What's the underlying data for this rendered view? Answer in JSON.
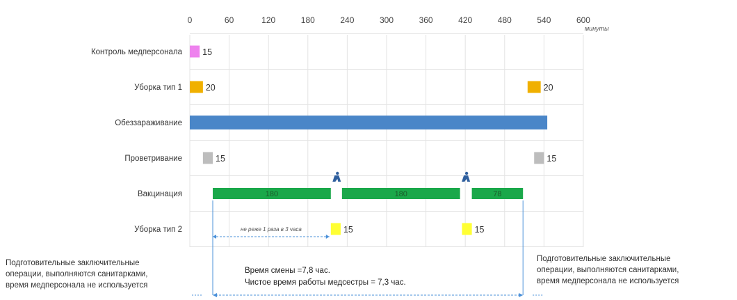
{
  "chart_data": {
    "type": "bar",
    "orientation": "horizontal",
    "x_unit": "минуты",
    "xlim": [
      0,
      600
    ],
    "x_ticks": [
      "0",
      "60",
      "120",
      "180",
      "240",
      "300",
      "360",
      "420",
      "480",
      "540",
      "600"
    ],
    "grid": true,
    "categories": [
      "Контроль медперсонала",
      "Уборка тип 1",
      "Обеззараживание",
      "Проветривание",
      "Вакцинация",
      "Уборка тип 2"
    ],
    "bars": [
      {
        "row": 0,
        "start": 0,
        "duration": 15,
        "label": "15",
        "label_pos": "right",
        "color": "#ee82ee"
      },
      {
        "row": 1,
        "start": 0,
        "duration": 20,
        "label": "20",
        "label_pos": "right",
        "color": "#f0b000"
      },
      {
        "row": 1,
        "start": 515,
        "duration": 20,
        "label": "20",
        "label_pos": "right",
        "color": "#f0b000"
      },
      {
        "row": 2,
        "start": 0,
        "duration": 545,
        "label": "",
        "label_pos": "none",
        "color": "#4a86c8"
      },
      {
        "row": 3,
        "start": 20,
        "duration": 15,
        "label": "15",
        "label_pos": "right",
        "color": "#bdbdbd"
      },
      {
        "row": 3,
        "start": 525,
        "duration": 15,
        "label": "15",
        "label_pos": "right",
        "color": "#bdbdbd"
      },
      {
        "row": 4,
        "start": 35,
        "duration": 180,
        "label": "180",
        "label_pos": "inside",
        "color": "#1aa84a"
      },
      {
        "row": 4,
        "start": 232,
        "duration": 180,
        "label": "180",
        "label_pos": "inside",
        "color": "#1aa84a"
      },
      {
        "row": 4,
        "start": 430,
        "duration": 78,
        "label": "78",
        "label_pos": "inside",
        "color": "#1aa84a"
      },
      {
        "row": 5,
        "start": 215,
        "duration": 15,
        "label": "15",
        "label_pos": "right",
        "color": "#ffff33"
      },
      {
        "row": 5,
        "start": 415,
        "duration": 15,
        "label": "15",
        "label_pos": "right",
        "color": "#ffff33"
      }
    ],
    "markers": [
      {
        "row": 4,
        "x": 224,
        "icon": "person-icon"
      },
      {
        "row": 4,
        "x": 421,
        "icon": "person-icon"
      }
    ],
    "annotation": {
      "text": "не реже 1 раза в 3 часа",
      "from": 35,
      "to": 215
    },
    "bracket": {
      "from": 35,
      "to": 508
    }
  },
  "notes": {
    "left": [
      "Подготовительные заключительные",
      "операции, выполняются санитарками,",
      "время медперсонала не используется"
    ],
    "center": [
      "Время смены =7,8 час.",
      "Чистое время работы медсестры = 7,3 час."
    ],
    "right": [
      "Подготовительные заключительные",
      "операции, выполняются санитарками,",
      "время медперсонала не используется"
    ]
  }
}
